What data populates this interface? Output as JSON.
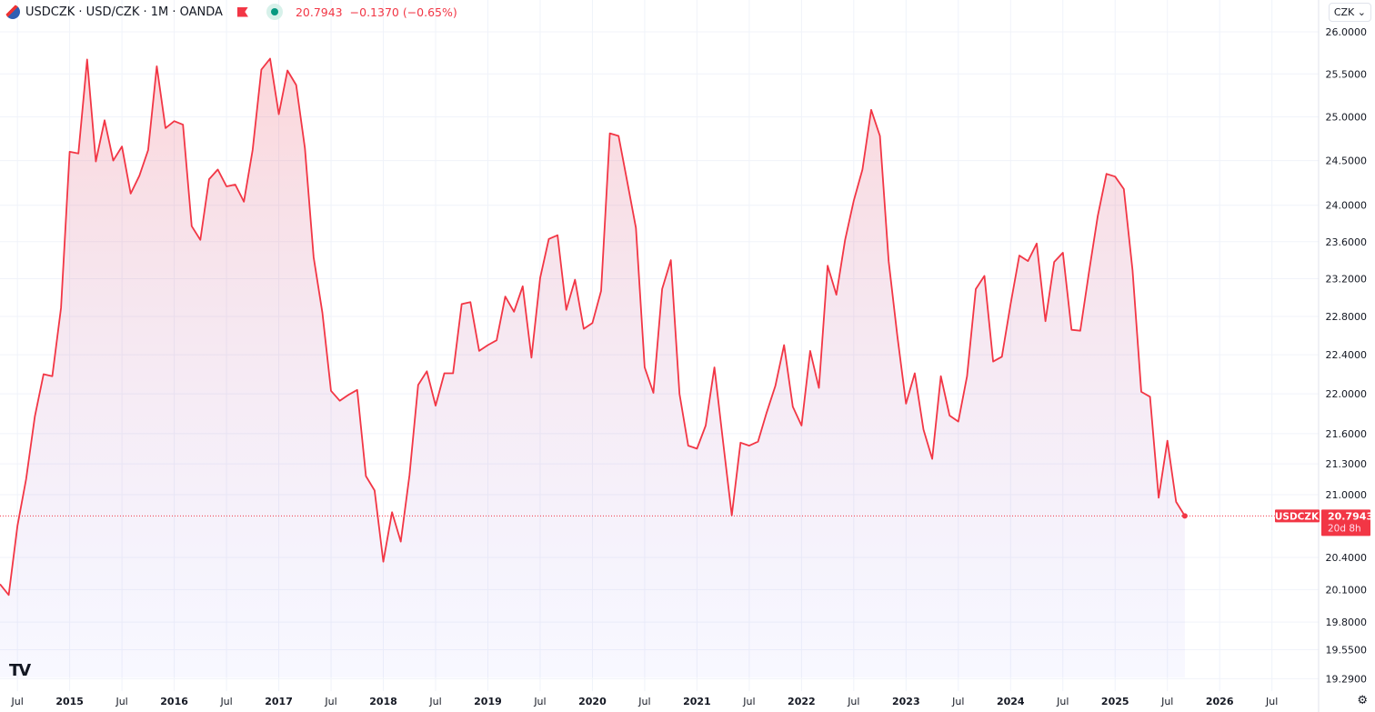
{
  "header": {
    "symbol_line": "USDCZK · USD/CZK · 1M · OANDA",
    "last": "20.7943",
    "change": "−0.1370 (−0.65%)"
  },
  "currency_selector": "CZK",
  "price_label": {
    "symbol": "USDCZK",
    "price": "20.7943",
    "countdown": "20d 8h"
  },
  "colors": {
    "line": "#f23645",
    "fill_top": "#f2364533",
    "fill_bottom": "#7878ff0d",
    "grid": "#f0f3fa"
  },
  "chart_data": {
    "type": "area",
    "title": "USDCZK · USD/CZK · 1M · OANDA",
    "scale": "log",
    "start_month": "2014-05",
    "interval": "1M",
    "ylim": [
      19.2,
      26.1
    ],
    "y_ticks": [
      "26.0000",
      "25.5000",
      "25.0000",
      "24.5000",
      "24.0000",
      "23.6000",
      "23.2000",
      "22.8000",
      "22.4000",
      "22.0000",
      "21.6000",
      "21.3000",
      "21.0000",
      "20.4000",
      "20.1000",
      "19.8000",
      "19.5500",
      "19.2900"
    ],
    "x_ticks": [
      {
        "label": "Jul",
        "month": "2014-07"
      },
      {
        "label": "2015",
        "month": "2015-01"
      },
      {
        "label": "Jul",
        "month": "2015-07"
      },
      {
        "label": "2016",
        "month": "2016-01"
      },
      {
        "label": "Jul",
        "month": "2016-07"
      },
      {
        "label": "2017",
        "month": "2017-01"
      },
      {
        "label": "Jul",
        "month": "2017-07"
      },
      {
        "label": "2018",
        "month": "2018-01"
      },
      {
        "label": "Jul",
        "month": "2018-07"
      },
      {
        "label": "2019",
        "month": "2019-01"
      },
      {
        "label": "Jul",
        "month": "2019-07"
      },
      {
        "label": "2020",
        "month": "2020-01"
      },
      {
        "label": "Jul",
        "month": "2020-07"
      },
      {
        "label": "2021",
        "month": "2021-01"
      },
      {
        "label": "Jul",
        "month": "2021-07"
      },
      {
        "label": "2022",
        "month": "2022-01"
      },
      {
        "label": "Jul",
        "month": "2022-07"
      },
      {
        "label": "2023",
        "month": "2023-01"
      },
      {
        "label": "Jul",
        "month": "2023-07"
      },
      {
        "label": "2024",
        "month": "2024-01"
      },
      {
        "label": "Jul",
        "month": "2024-07"
      },
      {
        "label": "2025",
        "month": "2025-01"
      },
      {
        "label": "Jul",
        "month": "2025-07"
      },
      {
        "label": "2026",
        "month": "2026-01"
      },
      {
        "label": "Jul",
        "month": "2026-07"
      }
    ],
    "values": [
      20.15,
      20.05,
      20.7,
      21.15,
      21.77,
      22.2,
      22.18,
      22.89,
      24.6,
      24.58,
      25.67,
      24.49,
      24.96,
      24.5,
      24.66,
      24.13,
      24.33,
      24.62,
      25.59,
      24.87,
      24.95,
      24.91,
      23.77,
      23.62,
      24.29,
      24.4,
      24.21,
      24.23,
      24.04,
      24.62,
      25.55,
      25.68,
      25.03,
      25.54,
      25.37,
      24.64,
      23.43,
      22.84,
      22.03,
      21.93,
      21.99,
      22.04,
      21.18,
      21.04,
      20.36,
      20.83,
      20.55,
      21.19,
      22.09,
      22.23,
      21.88,
      22.21,
      22.21,
      22.93,
      22.95,
      22.44,
      22.5,
      22.55,
      23.01,
      22.85,
      23.12,
      22.37,
      23.21,
      23.63,
      23.67,
      22.87,
      23.19,
      22.67,
      22.73,
      23.07,
      24.81,
      24.78,
      24.26,
      23.75,
      22.27,
      22.01,
      23.09,
      23.4,
      22.0,
      21.48,
      21.45,
      21.68,
      22.27,
      21.52,
      20.8,
      21.51,
      21.48,
      21.52,
      21.81,
      22.08,
      22.5,
      21.87,
      21.68,
      22.44,
      22.06,
      23.34,
      23.03,
      23.62,
      24.05,
      24.4,
      25.08,
      24.78,
      23.39,
      22.6,
      21.9,
      22.21,
      21.64,
      21.35,
      22.18,
      21.78,
      21.72,
      22.18,
      23.09,
      23.23,
      22.33,
      22.38,
      22.93,
      23.45,
      23.39,
      23.58,
      22.75,
      23.38,
      23.48,
      22.66,
      22.65,
      23.27,
      23.88,
      24.35,
      24.32,
      24.18,
      23.29,
      22.02,
      21.97,
      20.97,
      21.53,
      20.93,
      20.7943
    ]
  }
}
